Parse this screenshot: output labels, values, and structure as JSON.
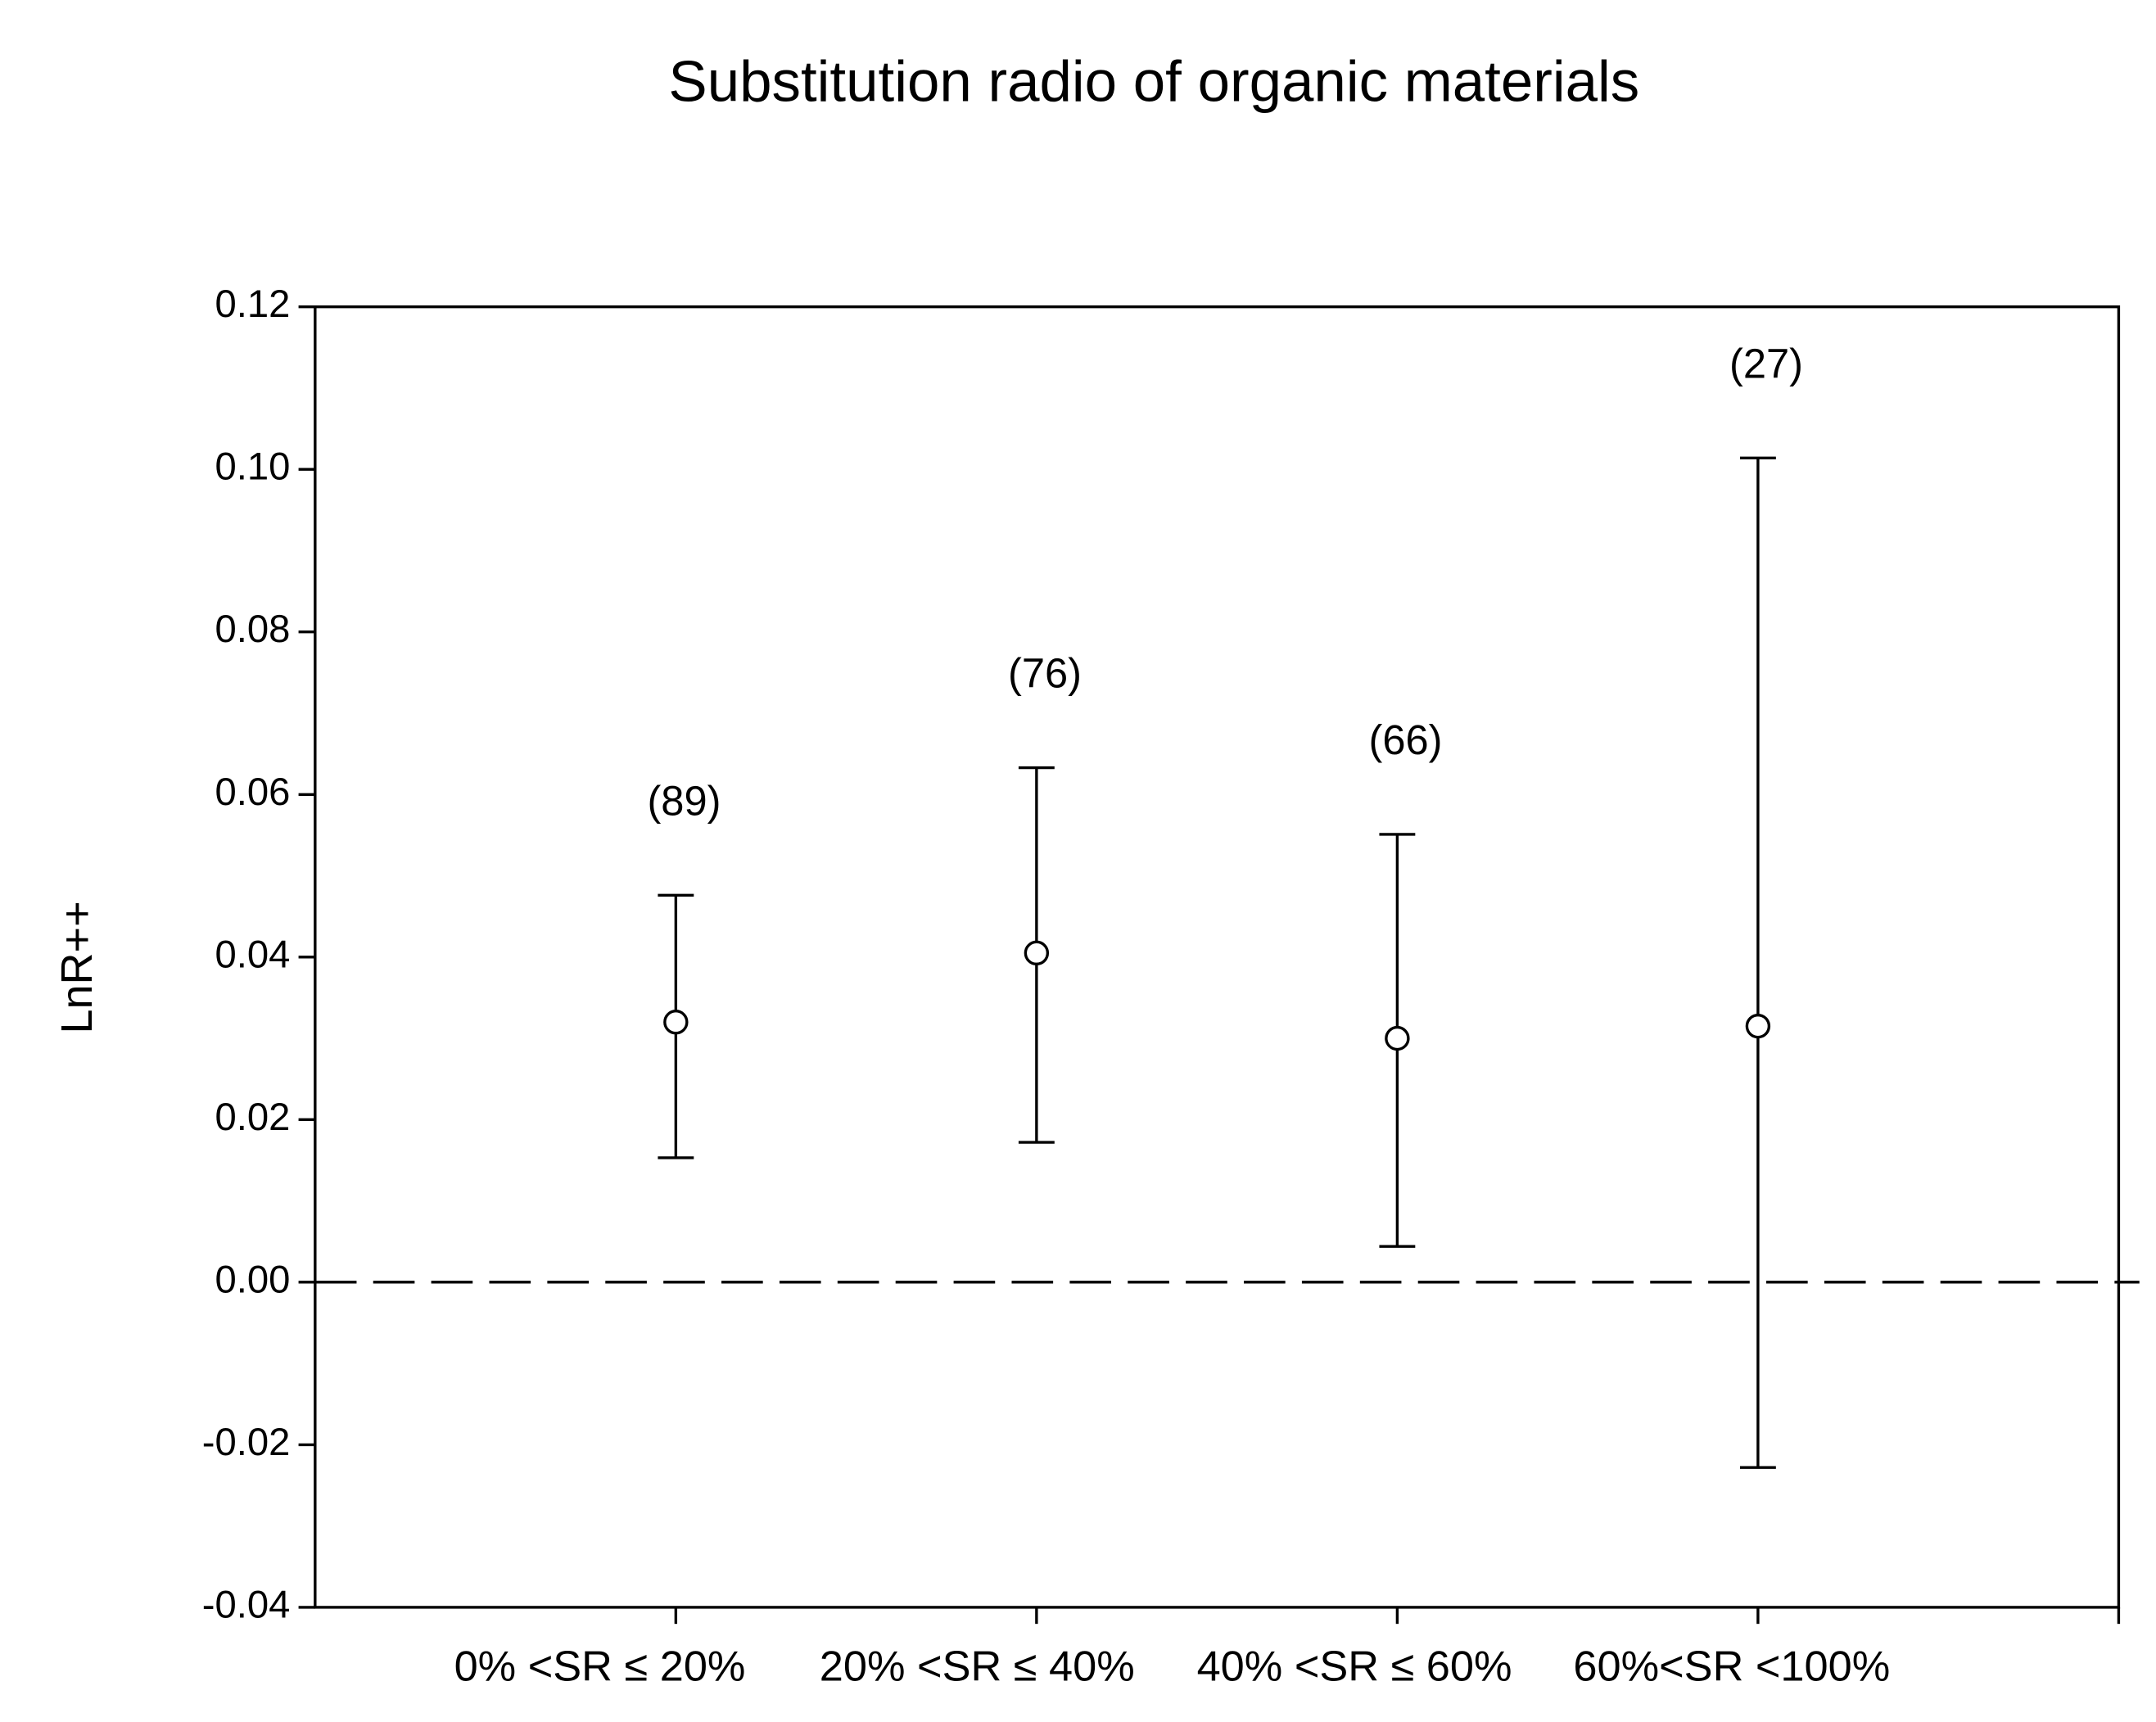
{
  "chart_data": {
    "type": "errorbar",
    "title": "Substitution radio of organic materials",
    "y_label": "LnR++",
    "categories": [
      "0% <SR ≤ 20%",
      "20% <SR ≤ 40%",
      "40% <SR ≤ 60%",
      "60%<SR <100%"
    ],
    "values": [
      0.032,
      0.0405,
      0.03,
      0.0315
    ],
    "lower": [
      0.0153,
      0.0172,
      0.0044,
      -0.0228
    ],
    "upper": [
      0.0476,
      0.0633,
      0.0551,
      0.1014
    ],
    "annotations": [
      "(89)",
      "(76)",
      "(66)",
      "(27)"
    ],
    "ylim": [
      -0.04,
      0.12
    ],
    "yticks": [
      -0.04,
      -0.02,
      {
        "value": 0,
        "label": "0.00"
      },
      0.02,
      0.04,
      0.06,
      0.08,
      {
        "value": 0.1,
        "label": "0.10"
      },
      0.12
    ],
    "reference_line": 0
  }
}
